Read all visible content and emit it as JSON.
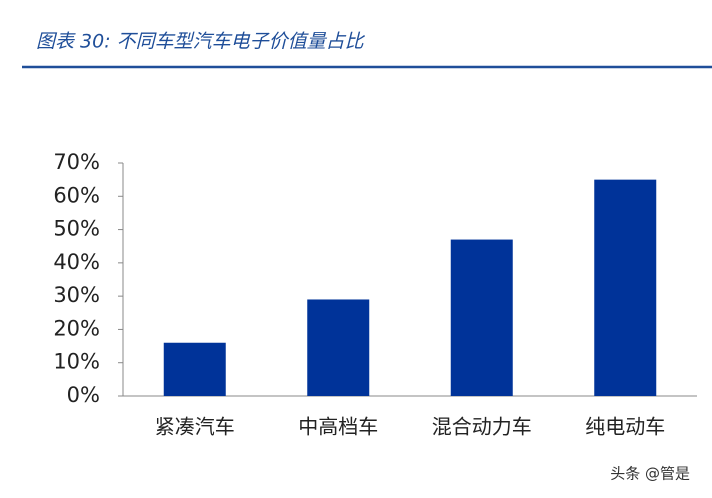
{
  "chart_data": {
    "type": "bar",
    "title": "图表 30:  不同车型汽车电子价值量占比",
    "categories": [
      "紧凑汽车",
      "中高档车",
      "混合动力车",
      "纯电动车"
    ],
    "values": [
      16,
      29,
      47,
      65
    ],
    "color": "#003399",
    "ylim": [
      0,
      70
    ],
    "yticks": [
      {
        "value": 0,
        "label": "0%"
      },
      {
        "value": 10,
        "label": "10%"
      },
      {
        "value": 20,
        "label": "20%"
      },
      {
        "value": 30,
        "label": "30%"
      },
      {
        "value": 40,
        "label": "40%"
      },
      {
        "value": 50,
        "label": "50%"
      },
      {
        "value": 60,
        "label": "60%"
      },
      {
        "value": 70,
        "label": "70%"
      }
    ],
    "grid": false,
    "watermark": "头条 @管是"
  }
}
